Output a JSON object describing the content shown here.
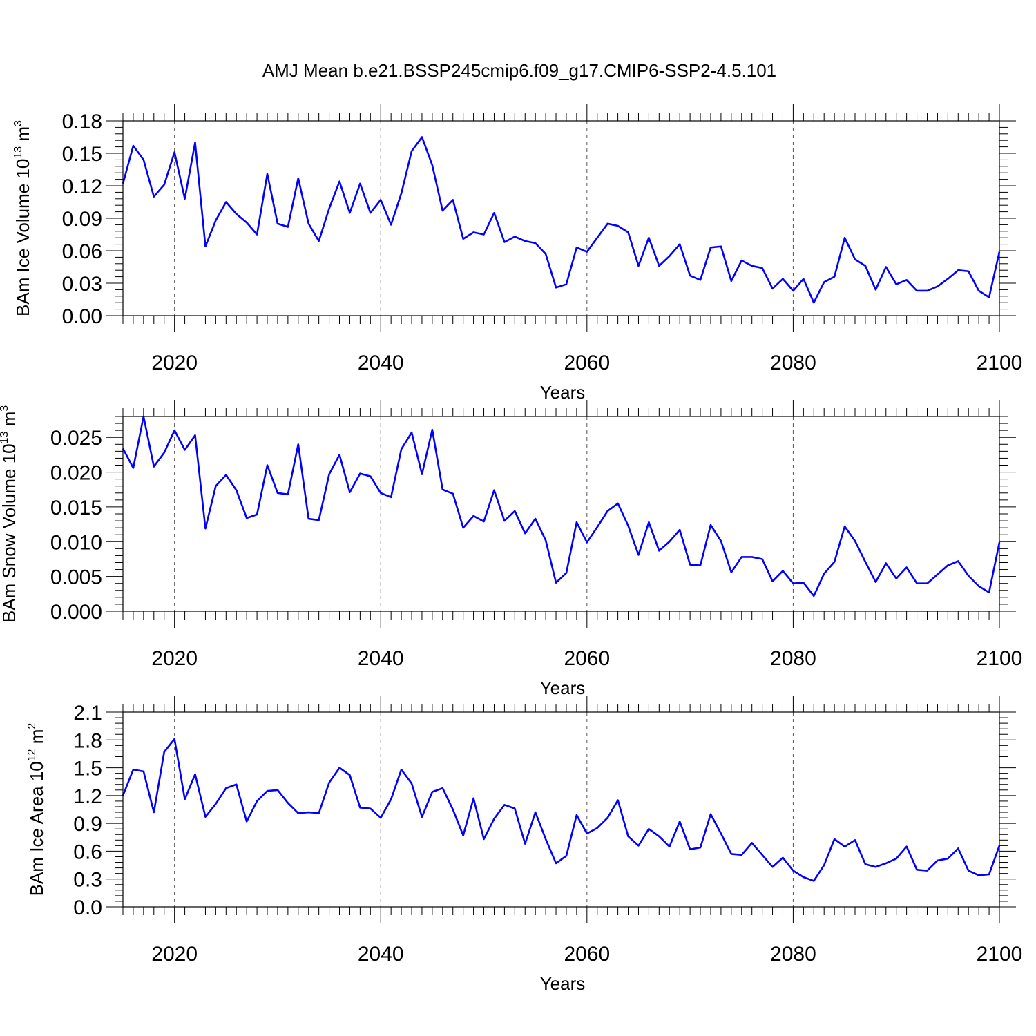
{
  "title": "AMJ Mean b.e21.BSSP245cmip6.f09_g17.CMIP6-SSP2-4.5.101",
  "colors": {
    "line": "#0000ff",
    "axis": "#000000",
    "grid": "#555555"
  },
  "chart_data": [
    {
      "type": "line",
      "ylabel": {
        "main": "BAm Ice Volume 10",
        "exp": "13",
        "unit": " m",
        "unit_exp": "3"
      },
      "xlabel": "Years",
      "xlim": [
        2015,
        2100
      ],
      "ylim": [
        0,
        0.18
      ],
      "yticks": [
        0.0,
        0.03,
        0.06,
        0.09,
        0.12,
        0.15,
        0.18
      ],
      "ytick_labels": [
        "0.00",
        "0.03",
        "0.06",
        "0.09",
        "0.12",
        "0.15",
        "0.18"
      ],
      "xticks": [
        2020,
        2040,
        2060,
        2080,
        2100
      ],
      "xtick_labels": [
        "2020",
        "2040",
        "2060",
        "2080",
        "2100"
      ],
      "grid": "vertical dashed at major x ticks",
      "x_start": 2015,
      "values": [
        0.122,
        0.157,
        0.144,
        0.11,
        0.121,
        0.151,
        0.108,
        0.16,
        0.064,
        0.088,
        0.105,
        0.094,
        0.086,
        0.075,
        0.131,
        0.085,
        0.082,
        0.127,
        0.085,
        0.069,
        0.099,
        0.124,
        0.095,
        0.122,
        0.095,
        0.107,
        0.084,
        0.113,
        0.152,
        0.165,
        0.139,
        0.097,
        0.107,
        0.071,
        0.077,
        0.075,
        0.095,
        0.068,
        0.073,
        0.069,
        0.067,
        0.057,
        0.026,
        0.029,
        0.063,
        0.059,
        0.072,
        0.085,
        0.083,
        0.077,
        0.046,
        0.072,
        0.046,
        0.055,
        0.066,
        0.037,
        0.033,
        0.063,
        0.064,
        0.032,
        0.051,
        0.046,
        0.044,
        0.025,
        0.034,
        0.023,
        0.034,
        0.012,
        0.031,
        0.036,
        0.072,
        0.052,
        0.046,
        0.024,
        0.045,
        0.029,
        0.033,
        0.023,
        0.023,
        0.027,
        0.034,
        0.042,
        0.041,
        0.023,
        0.017,
        0.059
      ]
    },
    {
      "type": "line",
      "ylabel": {
        "main": "BAm Snow Volume 10",
        "exp": "13",
        "unit": " m",
        "unit_exp": "3"
      },
      "xlabel": "Years",
      "xlim": [
        2015,
        2100
      ],
      "ylim": [
        0,
        0.028
      ],
      "yticks": [
        0.0,
        0.005,
        0.01,
        0.015,
        0.02,
        0.025
      ],
      "ytick_labels": [
        "0.000",
        "0.005",
        "0.010",
        "0.015",
        "0.020",
        "0.025"
      ],
      "xticks": [
        2020,
        2040,
        2060,
        2080,
        2100
      ],
      "xtick_labels": [
        "2020",
        "2040",
        "2060",
        "2080",
        "2100"
      ],
      "grid": "vertical dashed at major x ticks",
      "x_start": 2015,
      "values": [
        0.0234,
        0.0206,
        0.028,
        0.0208,
        0.0228,
        0.026,
        0.0232,
        0.0253,
        0.0119,
        0.018,
        0.0196,
        0.0174,
        0.0134,
        0.0139,
        0.021,
        0.017,
        0.0168,
        0.024,
        0.0133,
        0.0131,
        0.0197,
        0.0225,
        0.0171,
        0.0198,
        0.0194,
        0.017,
        0.0164,
        0.0233,
        0.0257,
        0.0197,
        0.0261,
        0.0175,
        0.0169,
        0.012,
        0.0137,
        0.0129,
        0.0174,
        0.013,
        0.0144,
        0.0112,
        0.0133,
        0.0102,
        0.0041,
        0.0055,
        0.0128,
        0.0099,
        0.0121,
        0.0144,
        0.0155,
        0.0123,
        0.0081,
        0.0128,
        0.0087,
        0.01,
        0.0117,
        0.0067,
        0.0066,
        0.0124,
        0.0101,
        0.0056,
        0.0078,
        0.0078,
        0.0075,
        0.0043,
        0.0058,
        0.004,
        0.0041,
        0.0022,
        0.0054,
        0.0071,
        0.0122,
        0.0101,
        0.0071,
        0.0042,
        0.0069,
        0.0047,
        0.0063,
        0.004,
        0.004,
        0.0053,
        0.0066,
        0.0072,
        0.0051,
        0.0036,
        0.0027,
        0.0099
      ]
    },
    {
      "type": "line",
      "ylabel": {
        "main": "BAm Ice Area 10",
        "exp": "12",
        "unit": " m",
        "unit_exp": "2"
      },
      "xlabel": "Years",
      "xlim": [
        2015,
        2100
      ],
      "ylim": [
        0,
        2.1
      ],
      "yticks": [
        0.0,
        0.3,
        0.6,
        0.9,
        1.2,
        1.5,
        1.8,
        2.1
      ],
      "ytick_labels": [
        "0.0",
        "0.3",
        "0.6",
        "0.9",
        "1.2",
        "1.5",
        "1.8",
        "2.1"
      ],
      "xticks": [
        2020,
        2040,
        2060,
        2080,
        2100
      ],
      "xtick_labels": [
        "2020",
        "2040",
        "2060",
        "2080",
        "2100"
      ],
      "grid": "vertical dashed at major x ticks",
      "x_start": 2015,
      "values": [
        1.2,
        1.48,
        1.46,
        1.02,
        1.67,
        1.81,
        1.16,
        1.43,
        0.97,
        1.11,
        1.28,
        1.32,
        0.92,
        1.14,
        1.25,
        1.26,
        1.12,
        1.01,
        1.02,
        1.01,
        1.34,
        1.5,
        1.42,
        1.07,
        1.06,
        0.96,
        1.16,
        1.48,
        1.33,
        0.97,
        1.24,
        1.28,
        1.05,
        0.77,
        1.17,
        0.73,
        0.95,
        1.1,
        1.06,
        0.68,
        1.02,
        0.73,
        0.47,
        0.55,
        0.99,
        0.79,
        0.85,
        0.96,
        1.15,
        0.76,
        0.66,
        0.84,
        0.76,
        0.65,
        0.92,
        0.62,
        0.64,
        1.0,
        0.79,
        0.57,
        0.56,
        0.69,
        0.56,
        0.43,
        0.53,
        0.39,
        0.32,
        0.28,
        0.45,
        0.73,
        0.65,
        0.72,
        0.46,
        0.43,
        0.47,
        0.52,
        0.65,
        0.4,
        0.39,
        0.5,
        0.52,
        0.63,
        0.39,
        0.34,
        0.35,
        0.66
      ]
    }
  ]
}
